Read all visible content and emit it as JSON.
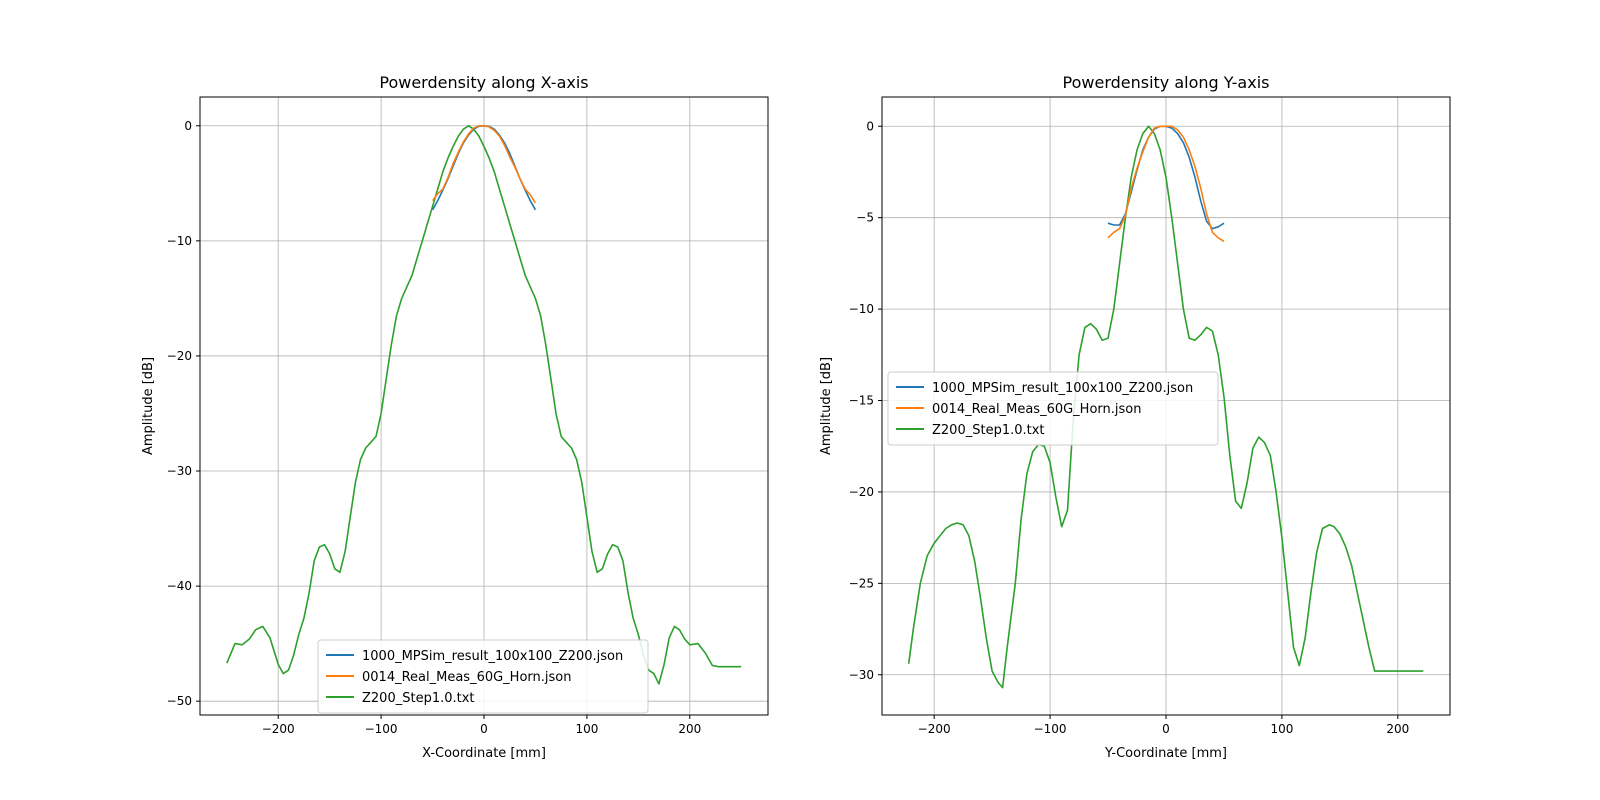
{
  "chart_data": [
    {
      "type": "line",
      "title": "Powerdensity along X-axis",
      "xlabel": "X-Coordinate [mm]",
      "ylabel": "Amplitude [dB]",
      "xlim": [
        -276,
        276
      ],
      "ylim": [
        -51.2,
        2.5
      ],
      "xticks": [
        -200,
        -100,
        0,
        100,
        200
      ],
      "xtick_labels": [
        "−200",
        "−100",
        "0",
        "100",
        "200"
      ],
      "yticks": [
        0,
        -10,
        -20,
        -30,
        -40,
        -50
      ],
      "ytick_labels": [
        "0",
        "−10",
        "−20",
        "−30",
        "−40",
        "−50"
      ],
      "grid": true,
      "legend_position": "lower center",
      "series": [
        {
          "name": "1000_MPSim_result_100x100_Z200.json",
          "color": "#1f77b4",
          "x": [
            -50,
            -45,
            -40,
            -35,
            -30,
            -25,
            -20,
            -15,
            -10,
            -5,
            0,
            5,
            10,
            15,
            20,
            25,
            30,
            35,
            40,
            45,
            50
          ],
          "y": [
            -7.3,
            -6.5,
            -5.6,
            -4.6,
            -3.5,
            -2.4,
            -1.5,
            -0.8,
            -0.3,
            -0.05,
            0,
            -0.05,
            -0.3,
            -0.8,
            -1.5,
            -2.4,
            -3.5,
            -4.6,
            -5.6,
            -6.5,
            -7.3
          ]
        },
        {
          "name": "0014_Real_Meas_60G_Horn.json",
          "color": "#ff7f0e",
          "x": [
            -50,
            -45,
            -40,
            -35,
            -30,
            -25,
            -20,
            -15,
            -10,
            -5,
            0,
            5,
            10,
            15,
            20,
            25,
            30,
            35,
            40,
            45,
            50
          ],
          "y": [
            -6.5,
            -5.9,
            -5.5,
            -4.5,
            -3.3,
            -2.3,
            -1.4,
            -0.7,
            -0.2,
            0,
            0,
            -0.1,
            -0.4,
            -0.9,
            -1.7,
            -2.7,
            -3.6,
            -4.6,
            -5.5,
            -6.0,
            -6.7
          ]
        },
        {
          "name": "Z200_Step1.0.txt",
          "color": "#2ca02c",
          "x": [
            -250,
            -242,
            -235,
            -228,
            -222,
            -215,
            -208,
            -200,
            -195,
            -190,
            -185,
            -180,
            -175,
            -170,
            -165,
            -160,
            -155,
            -150,
            -145,
            -140,
            -135,
            -130,
            -125,
            -120,
            -115,
            -110,
            -105,
            -100,
            -95,
            -90,
            -85,
            -80,
            -75,
            -70,
            -65,
            -60,
            -55,
            -50,
            -45,
            -40,
            -35,
            -30,
            -25,
            -20,
            -15,
            -10,
            -5,
            0,
            5,
            10,
            15,
            20,
            25,
            30,
            35,
            40,
            45,
            50,
            55,
            60,
            65,
            70,
            75,
            80,
            85,
            90,
            95,
            100,
            105,
            110,
            115,
            120,
            125,
            130,
            135,
            140,
            145,
            150,
            155,
            160,
            165,
            170,
            175,
            180,
            185,
            190,
            195,
            200,
            208,
            215,
            222,
            228,
            235,
            242,
            250
          ],
          "y": [
            -46.7,
            -45.0,
            -45.1,
            -44.6,
            -43.8,
            -43.5,
            -44.5,
            -46.8,
            -47.6,
            -47.3,
            -46.0,
            -44.2,
            -42.8,
            -40.6,
            -37.8,
            -36.6,
            -36.4,
            -37.2,
            -38.5,
            -38.8,
            -37.0,
            -34.0,
            -31.0,
            -29.0,
            -28.0,
            -27.5,
            -27.0,
            -25.0,
            -22.0,
            -19.0,
            -16.5,
            -15.0,
            -14.0,
            -13.0,
            -11.5,
            -10.0,
            -8.5,
            -7.0,
            -5.5,
            -4.0,
            -2.8,
            -1.8,
            -0.9,
            -0.3,
            0,
            -0.3,
            -0.9,
            -1.8,
            -2.8,
            -4.0,
            -5.5,
            -7.0,
            -8.5,
            -10.0,
            -11.5,
            -13.0,
            -14.0,
            -15.0,
            -16.5,
            -19.0,
            -22.0,
            -25.0,
            -27.0,
            -27.5,
            -28.0,
            -29.0,
            -31.0,
            -34.0,
            -37.0,
            -38.8,
            -38.5,
            -37.2,
            -36.4,
            -36.6,
            -37.8,
            -40.6,
            -42.8,
            -44.2,
            -46.0,
            -47.3,
            -47.6,
            -48.5,
            -46.8,
            -44.5,
            -43.5,
            -43.8,
            -44.6,
            -45.1,
            -45.0,
            -45.8,
            -46.9,
            -47.0,
            -47.0,
            -47.0,
            -47.0
          ]
        }
      ]
    },
    {
      "type": "line",
      "title": "Powerdensity along Y-axis",
      "xlabel": "Y-Coordinate [mm]",
      "ylabel": "Amplitude [dB]",
      "xlim": [
        -245,
        245
      ],
      "ylim": [
        -32.2,
        1.6
      ],
      "xticks": [
        -200,
        -100,
        0,
        100,
        200
      ],
      "xtick_labels": [
        "−200",
        "−100",
        "0",
        "100",
        "200"
      ],
      "yticks": [
        0,
        -5,
        -10,
        -15,
        -20,
        -25,
        -30
      ],
      "ytick_labels": [
        "0",
        "−5",
        "−10",
        "−15",
        "−20",
        "−25",
        "−30"
      ],
      "grid": true,
      "legend_position": "center left",
      "series": [
        {
          "name": "1000_MPSim_result_100x100_Z200.json",
          "color": "#1f77b4",
          "x": [
            -50,
            -45,
            -40,
            -35,
            -30,
            -25,
            -20,
            -15,
            -10,
            -5,
            0,
            5,
            10,
            15,
            20,
            25,
            30,
            35,
            40,
            45,
            50
          ],
          "y": [
            -5.3,
            -5.4,
            -5.4,
            -4.8,
            -3.6,
            -2.4,
            -1.3,
            -0.6,
            -0.15,
            0,
            0,
            -0.1,
            -0.4,
            -0.9,
            -1.7,
            -2.8,
            -4.1,
            -5.2,
            -5.6,
            -5.5,
            -5.3
          ]
        },
        {
          "name": "0014_Real_Meas_60G_Horn.json",
          "color": "#ff7f0e",
          "x": [
            -50,
            -45,
            -40,
            -35,
            -30,
            -25,
            -20,
            -15,
            -10,
            -5,
            0,
            5,
            10,
            15,
            20,
            25,
            30,
            35,
            40,
            45,
            50
          ],
          "y": [
            -6.1,
            -5.8,
            -5.6,
            -4.9,
            -3.4,
            -2.3,
            -1.4,
            -0.6,
            -0.1,
            0,
            0,
            0,
            -0.2,
            -0.6,
            -1.3,
            -2.2,
            -3.4,
            -4.8,
            -5.8,
            -6.1,
            -6.3
          ]
        },
        {
          "name": "Z200_Step1.0.txt",
          "color": "#2ca02c",
          "x": [
            -222,
            -218,
            -212,
            -206,
            -200,
            -195,
            -190,
            -185,
            -180,
            -175,
            -170,
            -165,
            -160,
            -155,
            -150,
            -145,
            -141,
            -137,
            -130,
            -125,
            -120,
            -115,
            -110,
            -105,
            -100,
            -95,
            -90,
            -85,
            -80,
            -75,
            -70,
            -65,
            -60,
            -55,
            -50,
            -45,
            -40,
            -35,
            -30,
            -25,
            -20,
            -15,
            -10,
            -5,
            0,
            5,
            10,
            15,
            20,
            25,
            30,
            35,
            40,
            45,
            50,
            55,
            60,
            65,
            70,
            75,
            80,
            85,
            90,
            95,
            100,
            105,
            110,
            115,
            120,
            125,
            130,
            135,
            141,
            145,
            150,
            155,
            160,
            165,
            170,
            175,
            180,
            185,
            190,
            195,
            200,
            206,
            212,
            218,
            222
          ],
          "y": [
            -29.4,
            -27.5,
            -25.0,
            -23.5,
            -22.8,
            -22.4,
            -22.0,
            -21.8,
            -21.7,
            -21.8,
            -22.4,
            -23.8,
            -25.8,
            -28.0,
            -29.8,
            -30.4,
            -30.7,
            -28.5,
            -25.0,
            -21.5,
            -19.0,
            -17.8,
            -17.4,
            -17.5,
            -18.4,
            -20.3,
            -21.9,
            -21.0,
            -16.0,
            -12.5,
            -11.0,
            -10.8,
            -11.1,
            -11.7,
            -11.6,
            -10.0,
            -7.5,
            -5.0,
            -2.8,
            -1.3,
            -0.4,
            0,
            -0.4,
            -1.3,
            -2.8,
            -5.0,
            -7.5,
            -10.0,
            -11.6,
            -11.7,
            -11.4,
            -11.0,
            -11.2,
            -12.5,
            -14.8,
            -18.0,
            -20.5,
            -20.9,
            -19.5,
            -17.6,
            -17.0,
            -17.3,
            -18.0,
            -20.0,
            -22.5,
            -25.5,
            -28.5,
            -29.5,
            -28.0,
            -25.5,
            -23.3,
            -22.0,
            -21.8,
            -21.9,
            -22.3,
            -23.0,
            -24.0,
            -25.5,
            -27.0,
            -28.5,
            -29.8,
            -29.8,
            -29.8,
            -29.8,
            -29.8,
            -29.8,
            -29.8,
            -29.8,
            -29.8
          ]
        }
      ]
    }
  ]
}
